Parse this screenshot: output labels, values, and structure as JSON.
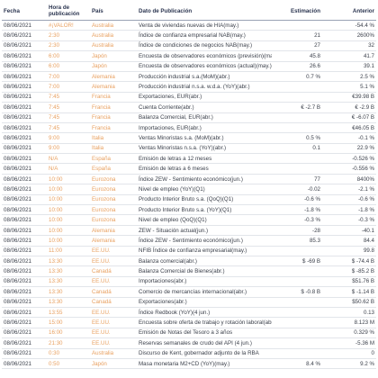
{
  "table": {
    "header": [
      "Fecha",
      "Hora de publicación",
      "País",
      "Dato de Publicación",
      "Estimación",
      "Anterior"
    ],
    "rows": [
      [
        "08/06/2021",
        "#¡VALOR!",
        "Australia",
        "Venta de viviendas nuevas de HIA(may.)",
        null,
        "-54.4 %"
      ],
      [
        "08/06/2021",
        "2:30",
        "Australia",
        "Índice de confianza empresarial NAB(may.)",
        "21",
        "2600%"
      ],
      [
        "08/06/2021",
        "2:30",
        "Australia",
        "Índice de condiciones de negocios NAB(may.)",
        "27",
        "32"
      ],
      [
        "08/06/2021",
        "6:00",
        "Japón",
        "Encuesta de observadores económicos (previsión)(may.)",
        "45.8",
        "41.7"
      ],
      [
        "08/06/2021",
        "6:00",
        "Japón",
        "Encuesta de observadores económicos (actual)(may.)",
        "26.6",
        "39.1"
      ],
      [
        "08/06/2021",
        "7:00",
        "Alemania",
        "Producción industrial s.a.(MoM)(abr.)",
        "0.7 %",
        "2.5 %"
      ],
      [
        "08/06/2021",
        "7:00",
        "Alemania",
        "Producción industrial n.s.a. w.d.a. (YoY)(abr.)",
        null,
        "5.1 %"
      ],
      [
        "08/06/2021",
        "7:45",
        "Francia",
        "Exportaciones, EUR(abr.)",
        null,
        "€39.98 B"
      ],
      [
        "08/06/2021",
        "7:45",
        "Francia",
        "Cuenta Corriente(abr.)",
        "€ -2.7 B",
        "€ -2.9 B"
      ],
      [
        "08/06/2021",
        "7:45",
        "Francia",
        "Balanza Comercial, EUR(abr.)",
        null,
        "€ -6.07 B"
      ],
      [
        "08/06/2021",
        "7:45",
        "Francia",
        "Importaciones, EUR(abr.)",
        null,
        "€46.05 B"
      ],
      [
        "08/06/2021",
        "9:00",
        "Italia",
        "Ventas Minoristas s.a. (MoM)(abr.)",
        "0.5 %",
        "-0.1 %"
      ],
      [
        "08/06/2021",
        "9:00",
        "Italia",
        "Ventas Minoristas n.s.a. (YoY)(abr.)",
        "0.1",
        "22.9 %"
      ],
      [
        "08/06/2021",
        "N/A",
        "España",
        "Emisión de letras a 12 meses",
        null,
        "-0.526 %"
      ],
      [
        "08/06/2021",
        "N/A",
        "España",
        "Emisión de letras a 6 meses",
        null,
        "-0.556 %"
      ],
      [
        "08/06/2021",
        "10:00",
        "Eurozona",
        "Índice ZEW - Sentimiento económico(jun.)",
        "77",
        "8400%"
      ],
      [
        "08/06/2021",
        "10:00",
        "Eurozona",
        "Nivel de empleo (YoY)(Q1)",
        "-0.02",
        "-2.1 %"
      ],
      [
        "08/06/2021",
        "10:00",
        "Eurozona",
        "Producto Interior Bruto s.a. (QoQ)(Q1)",
        "-0.6 %",
        "-0.6 %"
      ],
      [
        "08/06/2021",
        "10:00",
        "Eurozona",
        "Producto Interior Bruto s.a. (YoY)(Q1)",
        "-1.8 %",
        "-1.8 %"
      ],
      [
        "08/06/2021",
        "10:00",
        "Eurozona",
        "Nivel de empleo (QoQ)(Q1)",
        "-0.3 %",
        "-0.3 %"
      ],
      [
        "08/06/2021",
        "10:00",
        "Alemania",
        "ZEW - Situación actual(jun.)",
        "-28",
        "-40.1"
      ],
      [
        "08/06/2021",
        "10:00",
        "Alemania",
        "Índice ZEW - Sentimiento económico(jun.)",
        "85.3",
        "84.4"
      ],
      [
        "08/06/2021",
        "11:00",
        "EE.UU.",
        "NFIB Índice de confianza empresarial(may.)",
        null,
        "99.8"
      ],
      [
        "08/06/2021",
        "13:30",
        "EE.UU.",
        "Balanza comercial(abr.)",
        "$ -69 B",
        "$ -74.4 B"
      ],
      [
        "08/06/2021",
        "13:30",
        "Canadá",
        "Balanza Comercial de Bienes(abr.)",
        null,
        "$ -85.2 B"
      ],
      [
        "08/06/2021",
        "13:30",
        "EE.UU.",
        "Importaciones(abr.)",
        null,
        "$51.76 B"
      ],
      [
        "08/06/2021",
        "13:30",
        "Canadá",
        "Comercio de mercancías internacional(abr.)",
        "$ -0.8 B",
        "$ -1.14 B"
      ],
      [
        "08/06/2021",
        "13:30",
        "Canadá",
        "Exportaciones(abr.)",
        null,
        "$50.62 B"
      ],
      [
        "08/06/2021",
        "13:55",
        "EE.UU.",
        "Índice Redbook (YoY)(4 jun.)",
        null,
        "0.13"
      ],
      [
        "08/06/2021",
        "15:00",
        "EE.UU.",
        "Encuesta sobre oferta de trabajo y rotación laboral(abr.)",
        null,
        "8.123 M"
      ],
      [
        "08/06/2021",
        "16:00",
        "EE.UU.",
        "Emisión de Notas del Tesoro a 3 años",
        null,
        "0.329 %"
      ],
      [
        "08/06/2021",
        "21:30",
        "EE.UU.",
        "Reservas semanales de crudo del API (4 jun.)",
        null,
        "-5.36 M"
      ],
      [
        "08/06/2021",
        "0:30",
        "Australia",
        "Discurso de Kent, gobernador adjunto de la RBA",
        null,
        "0"
      ],
      [
        "08/06/2021",
        "0:50",
        "Japón",
        "Masa monetaria M2+CD (YoY)(may.)",
        "8.4 %",
        "9.2 %"
      ]
    ]
  }
}
